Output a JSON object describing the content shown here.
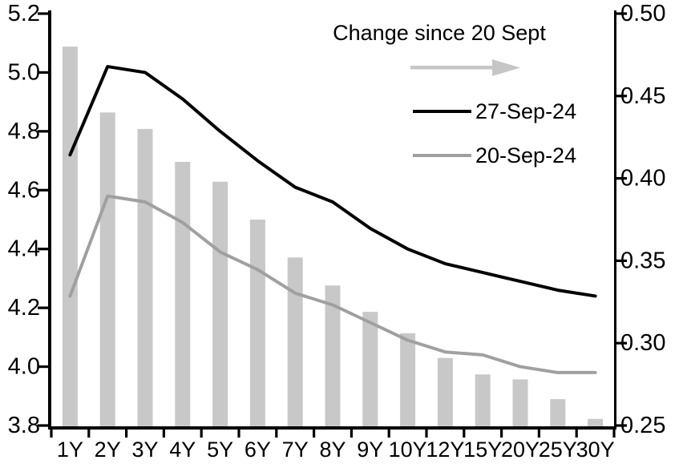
{
  "chart_data": {
    "type": "combo-bar-line",
    "categories": [
      "1Y",
      "2Y",
      "3Y",
      "4Y",
      "5Y",
      "6Y",
      "7Y",
      "8Y",
      "9Y",
      "10Y",
      "12Y",
      "15Y",
      "20Y",
      "25Y",
      "30Y"
    ],
    "series": [
      {
        "name": "Change since 20 Sept",
        "type": "bar",
        "axis": "right",
        "color": "#c8c8c8",
        "values": [
          0.48,
          0.44,
          0.43,
          0.41,
          0.398,
          0.375,
          0.352,
          0.335,
          0.319,
          0.306,
          0.291,
          0.281,
          0.278,
          0.266,
          0.254
        ]
      },
      {
        "name": "27-Sep-24",
        "type": "line",
        "axis": "left",
        "color": "#000000",
        "values": [
          4.72,
          5.02,
          5.0,
          4.91,
          4.8,
          4.7,
          4.61,
          4.56,
          4.47,
          4.4,
          4.35,
          4.32,
          4.29,
          4.26,
          4.24
        ]
      },
      {
        "name": "20-Sep-24",
        "type": "line",
        "axis": "left",
        "color": "#a0a0a0",
        "values": [
          4.24,
          4.58,
          4.56,
          4.49,
          4.39,
          4.33,
          4.25,
          4.21,
          4.15,
          4.09,
          4.05,
          4.04,
          4.0,
          3.98,
          3.98
        ]
      }
    ],
    "left_axis": {
      "min": 3.8,
      "max": 5.2,
      "tick_labels": [
        "5.2",
        "5.0",
        "4.8",
        "4.6",
        "4.4",
        "4.2",
        "4.0",
        "3.8"
      ]
    },
    "right_axis": {
      "min": 0.25,
      "max": 0.5,
      "tick_labels": [
        "0.50",
        "0.45",
        "0.40",
        "0.35",
        "0.30",
        "0.25"
      ]
    },
    "grid": false,
    "legend_position": "top-inside",
    "legend": {
      "title": "Change since 20 Sept",
      "arrow_icon": "right-arrow",
      "arrow_color": "#c6c6c6",
      "line1_label": "27-Sep-24",
      "line2_label": "20-Sep-24"
    },
    "title": "",
    "xlabel": "",
    "ylabel": ""
  }
}
